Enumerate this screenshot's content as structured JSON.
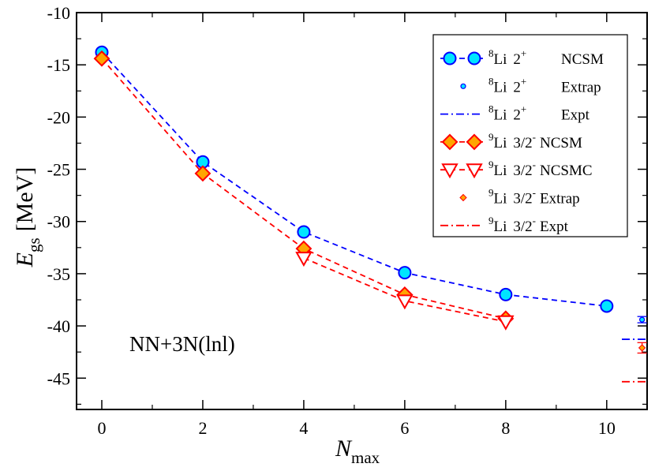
{
  "chart_data": {
    "type": "line",
    "xlabel": "N",
    "xlabel_sub": "max",
    "ylabel": "E",
    "ylabel_sub": "gs",
    "ylabel_unit": "[MeV]",
    "xlim": [
      -0.5,
      10.8
    ],
    "ylim": [
      -48,
      -10
    ],
    "xticks": [
      0,
      2,
      4,
      6,
      8,
      10
    ],
    "yticks": [
      -10,
      -15,
      -20,
      -25,
      -30,
      -35,
      -40,
      -45
    ],
    "annotation": "NN+3N(lnl)",
    "legend_position": "top-right",
    "series": [
      {
        "id": "li8-ncsm",
        "name": "Li 2 NCSM",
        "legend": {
          "mass": "8",
          "el": "Li",
          "j": "2",
          "parity": "+",
          "method": "NCSM"
        },
        "color": "#0000ff",
        "fill": "#00e5ff",
        "style": "dashed",
        "marker": "circle",
        "x": [
          0,
          2,
          4,
          6,
          8,
          10
        ],
        "y": [
          -13.8,
          -24.3,
          -31.0,
          -34.9,
          -37.0,
          -38.1
        ]
      },
      {
        "id": "li8-extrap",
        "name": "Li 2 Extrap",
        "legend": {
          "mass": "8",
          "el": "Li",
          "j": "2",
          "parity": "+",
          "method": "Extrap"
        },
        "color": "#0000ff",
        "fill": "#00e5ff",
        "style": "none",
        "marker": "small-circle",
        "x": [
          10.7
        ],
        "y": [
          -39.4
        ],
        "err": [
          0.3
        ]
      },
      {
        "id": "li8-expt",
        "name": "Li 2 Expt",
        "legend": {
          "mass": "8",
          "el": "Li",
          "j": "2",
          "parity": "+",
          "method": "Expt"
        },
        "color": "#0000ff",
        "style": "dashdot",
        "marker": "none",
        "x": [
          10.3,
          10.8
        ],
        "y": [
          -41.28,
          -41.28
        ]
      },
      {
        "id": "li9-ncsm",
        "name": "Li 3/2 NCSM",
        "legend": {
          "mass": "9",
          "el": "Li",
          "j": "3/2",
          "parity": "-",
          "method": "NCSM"
        },
        "color": "#ff0000",
        "fill": "#ffa500",
        "style": "dashed",
        "marker": "diamond",
        "x": [
          0,
          2,
          4,
          6,
          8
        ],
        "y": [
          -14.4,
          -25.4,
          -32.6,
          -37.0,
          -39.3
        ]
      },
      {
        "id": "li9-ncsmc",
        "name": "Li 3/2 NCSMC",
        "legend": {
          "mass": "9",
          "el": "Li",
          "j": "3/2",
          "parity": "-",
          "method": "NCSMC"
        },
        "color": "#ff0000",
        "fill": "#ffffff",
        "style": "dashed",
        "marker": "triangle-down",
        "x": [
          4,
          6,
          8
        ],
        "y": [
          -33.5,
          -37.6,
          -39.6
        ]
      },
      {
        "id": "li9-extrap",
        "name": "Li 3/2 Extrap",
        "legend": {
          "mass": "9",
          "el": "Li",
          "j": "3/2",
          "parity": "-",
          "method": "Extrap"
        },
        "color": "#ff0000",
        "fill": "#ffa500",
        "style": "none",
        "marker": "small-diamond",
        "x": [
          10.7
        ],
        "y": [
          -42.1
        ],
        "err": [
          0.5
        ]
      },
      {
        "id": "li9-expt",
        "name": "Li 3/2 Expt",
        "legend": {
          "mass": "9",
          "el": "Li",
          "j": "3/2",
          "parity": "-",
          "method": "Expt"
        },
        "color": "#ff0000",
        "style": "dashdot",
        "marker": "none",
        "x": [
          10.3,
          10.8
        ],
        "y": [
          -45.34,
          -45.34
        ]
      }
    ]
  }
}
